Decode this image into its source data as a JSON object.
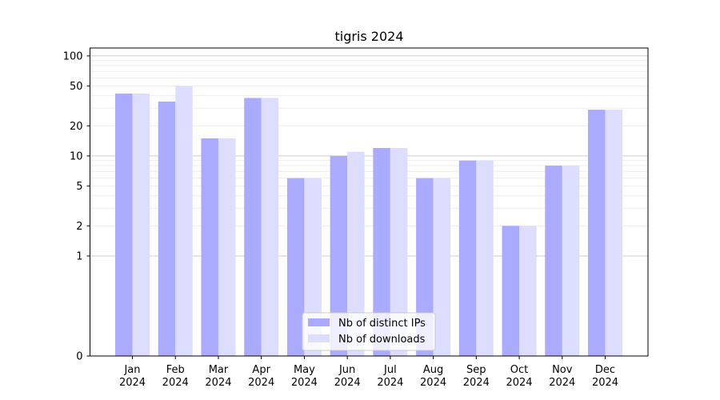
{
  "chart_data": {
    "type": "bar",
    "title": "tigris 2024",
    "xlabel": "",
    "ylabel": "",
    "y_scale": "symlog",
    "ylim": [
      0,
      120
    ],
    "y_ticks": [
      0,
      1,
      2,
      5,
      10,
      20,
      50,
      100
    ],
    "grid": "horizontal",
    "legend_position": "lower center",
    "categories": [
      [
        "Jan",
        "2024"
      ],
      [
        "Feb",
        "2024"
      ],
      [
        "Mar",
        "2024"
      ],
      [
        "Apr",
        "2024"
      ],
      [
        "May",
        "2024"
      ],
      [
        "Jun",
        "2024"
      ],
      [
        "Jul",
        "2024"
      ],
      [
        "Aug",
        "2024"
      ],
      [
        "Sep",
        "2024"
      ],
      [
        "Oct",
        "2024"
      ],
      [
        "Nov",
        "2024"
      ],
      [
        "Dec",
        "2024"
      ]
    ],
    "series": [
      {
        "name": "Nb of distinct IPs",
        "color": "#aaaaff",
        "values": [
          42,
          35,
          15,
          38,
          6,
          10,
          12,
          6,
          9,
          2,
          8,
          29
        ]
      },
      {
        "name": "Nb of downloads",
        "color": "#ddddff",
        "values": [
          42,
          50,
          15,
          38,
          6,
          11,
          12,
          6,
          9,
          2,
          8,
          29
        ]
      }
    ]
  }
}
